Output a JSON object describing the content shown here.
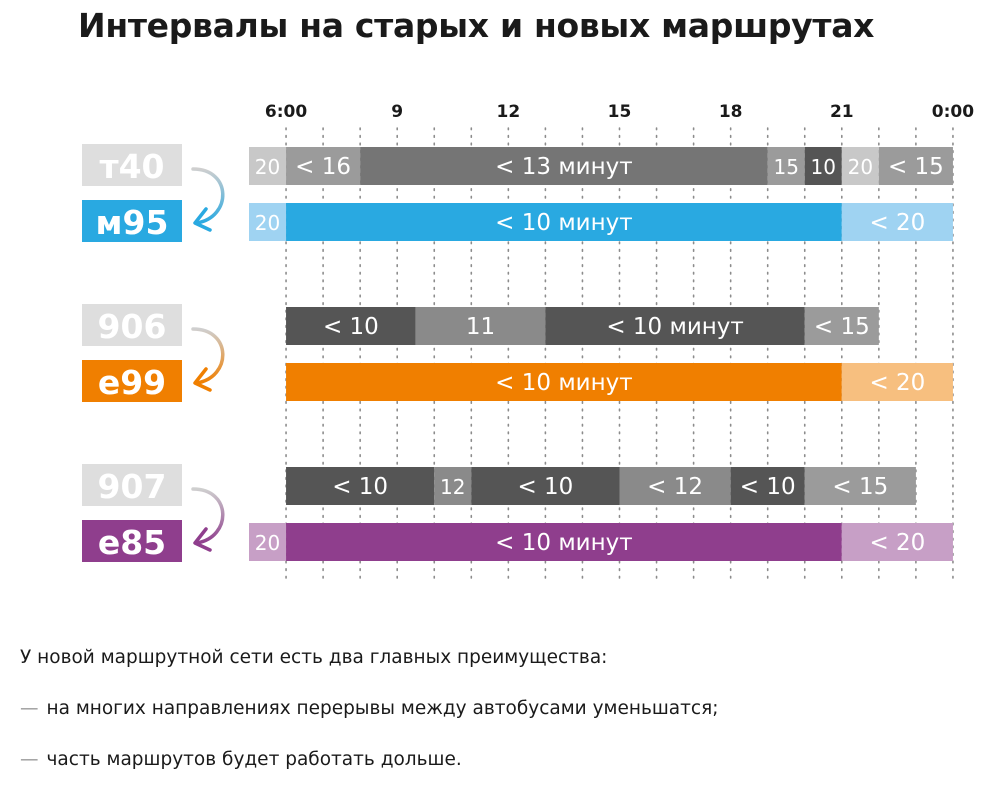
{
  "title": "Интервалы на старых и новых маршрутах",
  "chart_data": {
    "type": "bar",
    "subtype": "timeline-gantt",
    "x_axis": {
      "range": [
        5,
        24
      ],
      "ticks": [
        {
          "value": 6,
          "label": "6:00"
        },
        {
          "value": 9,
          "label": "9"
        },
        {
          "value": 12,
          "label": "12"
        },
        {
          "value": 15,
          "label": "15"
        },
        {
          "value": 18,
          "label": "18"
        },
        {
          "value": 21,
          "label": "21"
        },
        {
          "value": 24,
          "label": "0:00"
        }
      ],
      "grid": "dotted-hourly"
    },
    "groups": [
      {
        "old_route": {
          "label": "т40",
          "segments": [
            {
              "start": 5,
              "end": 6,
              "label": "20",
              "color": "#c8c8c8"
            },
            {
              "start": 6,
              "end": 8,
              "label": "< 16",
              "color": "#9b9b9b"
            },
            {
              "start": 8,
              "end": 19,
              "label": "< 13 минут",
              "color": "#757575"
            },
            {
              "start": 19,
              "end": 20,
              "label": "15",
              "color": "#9b9b9b"
            },
            {
              "start": 20,
              "end": 21,
              "label": "10",
              "color": "#555555"
            },
            {
              "start": 21,
              "end": 22,
              "label": "20",
              "color": "#c8c8c8"
            },
            {
              "start": 22,
              "end": 24,
              "label": "< 15",
              "color": "#9b9b9b"
            }
          ]
        },
        "new_route": {
          "label": "м95",
          "color": "#29a9e1",
          "segments": [
            {
              "start": 5,
              "end": 6,
              "label": "20",
              "color": "#9fd3f2"
            },
            {
              "start": 6,
              "end": 21,
              "label": "< 10 минут",
              "color": "#29a9e1"
            },
            {
              "start": 21,
              "end": 24,
              "label": "< 20",
              "color": "#9fd3f2"
            }
          ]
        }
      },
      {
        "old_route": {
          "label": "906",
          "segments": [
            {
              "start": 6,
              "end": 9.5,
              "label": "< 10",
              "color": "#555555"
            },
            {
              "start": 9.5,
              "end": 13,
              "label": "11",
              "color": "#8a8a8a"
            },
            {
              "start": 13,
              "end": 20,
              "label": "< 10 минут",
              "color": "#555555"
            },
            {
              "start": 20,
              "end": 22,
              "label": "< 15",
              "color": "#9b9b9b"
            }
          ]
        },
        "new_route": {
          "label": "е99",
          "color": "#f07f00",
          "segments": [
            {
              "start": 6,
              "end": 21,
              "label": "< 10 минут",
              "color": "#f07f00"
            },
            {
              "start": 21,
              "end": 24,
              "label": "< 20",
              "color": "#f7bf7f"
            }
          ]
        }
      },
      {
        "old_route": {
          "label": "907",
          "segments": [
            {
              "start": 6,
              "end": 10,
              "label": "< 10",
              "color": "#555555"
            },
            {
              "start": 10,
              "end": 11,
              "label": "12",
              "color": "#8a8a8a"
            },
            {
              "start": 11,
              "end": 15,
              "label": "< 10",
              "color": "#555555"
            },
            {
              "start": 15,
              "end": 18,
              "label": "< 12",
              "color": "#8a8a8a"
            },
            {
              "start": 18,
              "end": 20,
              "label": "< 10",
              "color": "#555555"
            },
            {
              "start": 20,
              "end": 23,
              "label": "< 15",
              "color": "#9b9b9b"
            }
          ]
        },
        "new_route": {
          "label": "е85",
          "color": "#8f3e8d",
          "segments": [
            {
              "start": 5,
              "end": 6,
              "label": "20",
              "color": "#c79fc6"
            },
            {
              "start": 6,
              "end": 21,
              "label": "< 10 минут",
              "color": "#8f3e8d"
            },
            {
              "start": 21,
              "end": 24,
              "label": "< 20",
              "color": "#c79fc6"
            }
          ]
        }
      }
    ]
  },
  "notes": {
    "intro": "У новой маршрутной сети есть два главных преимущества:",
    "dash": "—",
    "items": [
      "на многих направлениях перерывы между автобусами уменьшатся;",
      "часть маршрутов будет работать дольше."
    ]
  },
  "colors": {
    "old_badge_bg": "#dedede",
    "arrow_old": "#cfcfcf",
    "accent_m95": "#29a9e1",
    "accent_e99": "#f07f00",
    "accent_e85": "#8f3e8d"
  }
}
